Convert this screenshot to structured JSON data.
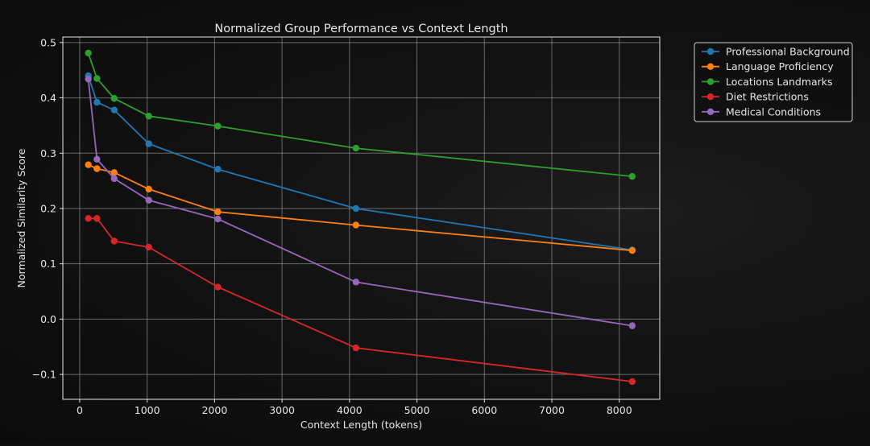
{
  "chart_data": {
    "type": "line",
    "title": "Normalized Group Performance vs Context Length",
    "xlabel": "Context Length (tokens)",
    "ylabel": "Normalized Similarity Score",
    "xlim": [
      -250,
      8600
    ],
    "ylim": [
      -0.145,
      0.51
    ],
    "xticks": [
      0,
      1000,
      2000,
      3000,
      4000,
      5000,
      6000,
      7000,
      8000
    ],
    "yticks": [
      -0.1,
      0.0,
      0.1,
      0.2,
      0.3,
      0.4,
      0.5
    ],
    "xtick_labels": [
      "0",
      "1000",
      "2000",
      "3000",
      "4000",
      "5000",
      "6000",
      "7000",
      "8000"
    ],
    "ytick_labels": [
      "−0.1",
      "0.0",
      "0.1",
      "0.2",
      "0.3",
      "0.4",
      "0.5"
    ],
    "grid": true,
    "legend_position": "outside-top-right",
    "x": [
      128,
      256,
      512,
      1024,
      2048,
      4096,
      8192
    ],
    "series": [
      {
        "name": "Professional Background",
        "color": "#1f77b4",
        "values": [
          0.44,
          0.392,
          0.378,
          0.317,
          0.271,
          0.2,
          0.125
        ]
      },
      {
        "name": "Language Proficiency",
        "color": "#ff7f0e",
        "values": [
          0.279,
          0.272,
          0.265,
          0.235,
          0.194,
          0.17,
          0.124
        ]
      },
      {
        "name": "Locations Landmarks",
        "color": "#2ca02c",
        "values": [
          0.481,
          0.435,
          0.399,
          0.367,
          0.349,
          0.309,
          0.258
        ]
      },
      {
        "name": "Diet Restrictions",
        "color": "#d62728",
        "values": [
          0.182,
          0.182,
          0.141,
          0.13,
          0.058,
          -0.052,
          -0.113
        ]
      },
      {
        "name": "Medical Conditions",
        "color": "#9467bd",
        "values": [
          0.434,
          0.289,
          0.254,
          0.215,
          0.181,
          0.067,
          -0.012
        ]
      }
    ]
  }
}
